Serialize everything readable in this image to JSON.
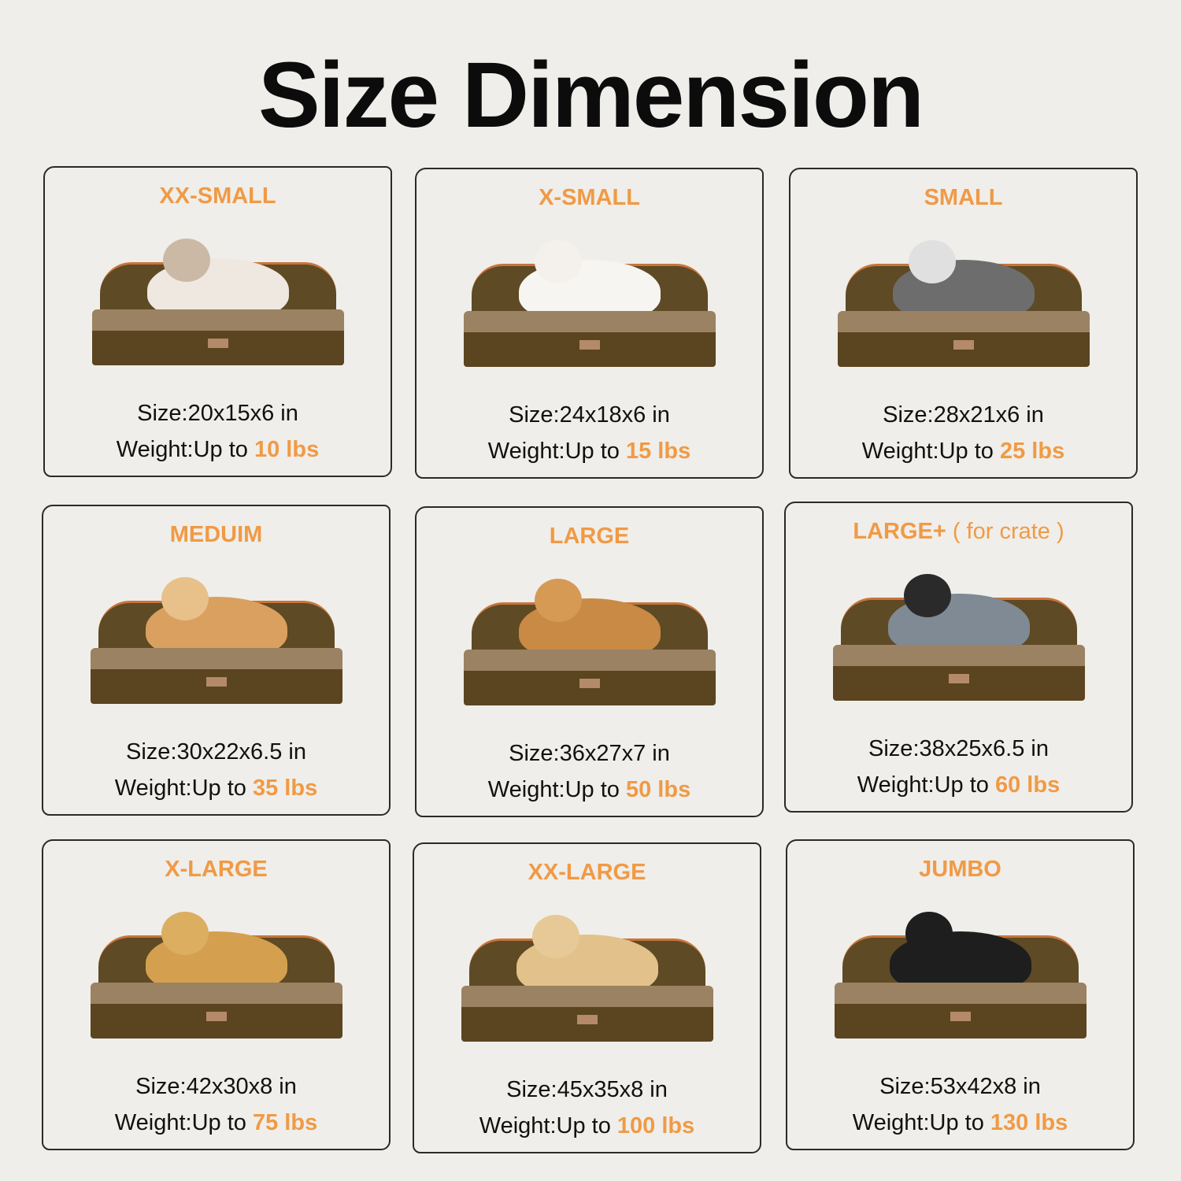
{
  "title": "Size Dimension",
  "colors": {
    "accent": "#f09a45",
    "text": "#111111",
    "background": "#efeeea",
    "bed": "#5a4520"
  },
  "size_label": "Size",
  "weight_label": "Weight",
  "up_to": "Up to",
  "cards": [
    {
      "name": "XX-SMALL",
      "subtitle": "",
      "size": "20x15x6 in",
      "weight": "10 lbs",
      "pet": "ragdoll-cat"
    },
    {
      "name": "X-SMALL",
      "subtitle": "",
      "size": "24x18x6 in",
      "weight": "15 lbs",
      "pet": "pomeranian"
    },
    {
      "name": "SMALL",
      "subtitle": "",
      "size": "28x21x6 in",
      "weight": "25 lbs",
      "pet": "schnauzer"
    },
    {
      "name": "MEDUIM",
      "subtitle": "",
      "size": "30x22x6.5 in",
      "weight": "35 lbs",
      "pet": "corgi"
    },
    {
      "name": "LARGE",
      "subtitle": "",
      "size": "36x27x7 in",
      "weight": "50 lbs",
      "pet": "golden-retriever"
    },
    {
      "name": "LARGE+",
      "subtitle": "( for crate )",
      "size": "38x25x6.5 in",
      "weight": "60 lbs",
      "pet": "australian-shepherd"
    },
    {
      "name": "X-LARGE",
      "subtitle": "",
      "size": "42x30x8 in",
      "weight": "75 lbs",
      "pet": "golden-retriever"
    },
    {
      "name": "XX-LARGE",
      "subtitle": "",
      "size": "45x35x8 in",
      "weight": "100 lbs",
      "pet": "labrador"
    },
    {
      "name": "JUMBO",
      "subtitle": "",
      "size": "53x42x8 in",
      "weight": "130 lbs",
      "pet": "bernese-mountain-dog"
    }
  ]
}
